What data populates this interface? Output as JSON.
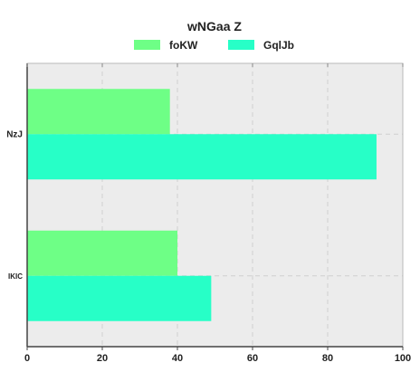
{
  "chart_data": {
    "type": "bar",
    "orientation": "horizontal",
    "title": "wNGaa Z",
    "categories": [
      "NzJ",
      "IKIC"
    ],
    "series": [
      {
        "name": "foKW",
        "values": [
          38,
          40
        ],
        "color": "#6eff86"
      },
      {
        "name": "GqlJb",
        "values": [
          93,
          49
        ],
        "color": "#27ffc7"
      }
    ],
    "xlim": [
      0,
      100
    ],
    "xticks": [
      0,
      20,
      40,
      60,
      80,
      100
    ],
    "xlabel": "",
    "ylabel": "",
    "grid": true,
    "legend_position": "top",
    "plot_background": "#ececec"
  }
}
